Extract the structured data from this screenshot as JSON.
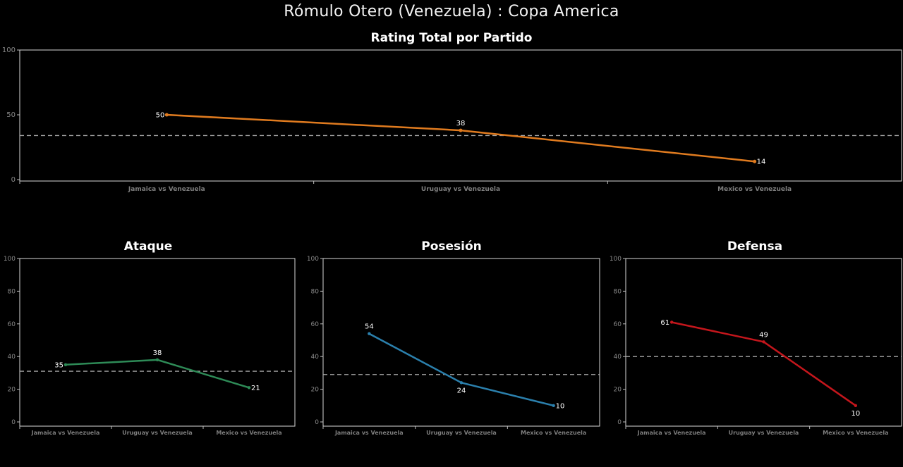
{
  "header": {
    "title": "Rómulo Otero (Venezuela) :  Copa  America"
  },
  "chart_data": [
    {
      "id": "total",
      "type": "line",
      "title": "Rating Total por Partido",
      "categories": [
        "Jamaica vs Venezuela",
        "Uruguay vs Venezuela",
        "Mexico vs Venezuela"
      ],
      "values": [
        50,
        38,
        14
      ],
      "ylim": [
        0,
        100
      ],
      "yticks": [
        0,
        50,
        100
      ],
      "mean_line": 34,
      "color": "#e07b1f"
    },
    {
      "id": "ataque",
      "type": "line",
      "title": "Ataque",
      "categories": [
        "Jamaica vs Venezuela",
        "Uruguay vs Venezuela",
        "Mexico vs Venezuela"
      ],
      "values": [
        35,
        38,
        21
      ],
      "ylim": [
        0,
        100
      ],
      "yticks": [
        0,
        20,
        40,
        60,
        80,
        100
      ],
      "mean_line": 31,
      "color": "#2e8b57"
    },
    {
      "id": "posesion",
      "type": "line",
      "title": "Posesión",
      "categories": [
        "Jamaica vs Venezuela",
        "Uruguay vs Venezuela",
        "Mexico vs Venezuela"
      ],
      "values": [
        54,
        24,
        10
      ],
      "ylim": [
        0,
        100
      ],
      "yticks": [
        0,
        20,
        40,
        60,
        80,
        100
      ],
      "mean_line": 29,
      "color": "#2b80ad"
    },
    {
      "id": "defensa",
      "type": "line",
      "title": "Defensa",
      "categories": [
        "Jamaica vs Venezuela",
        "Uruguay vs Venezuela",
        "Mexico vs Venezuela"
      ],
      "values": [
        61,
        49,
        10
      ],
      "ylim": [
        0,
        100
      ],
      "yticks": [
        0,
        20,
        40,
        60,
        80,
        100
      ],
      "mean_line": 40,
      "color": "#c4161c"
    }
  ]
}
